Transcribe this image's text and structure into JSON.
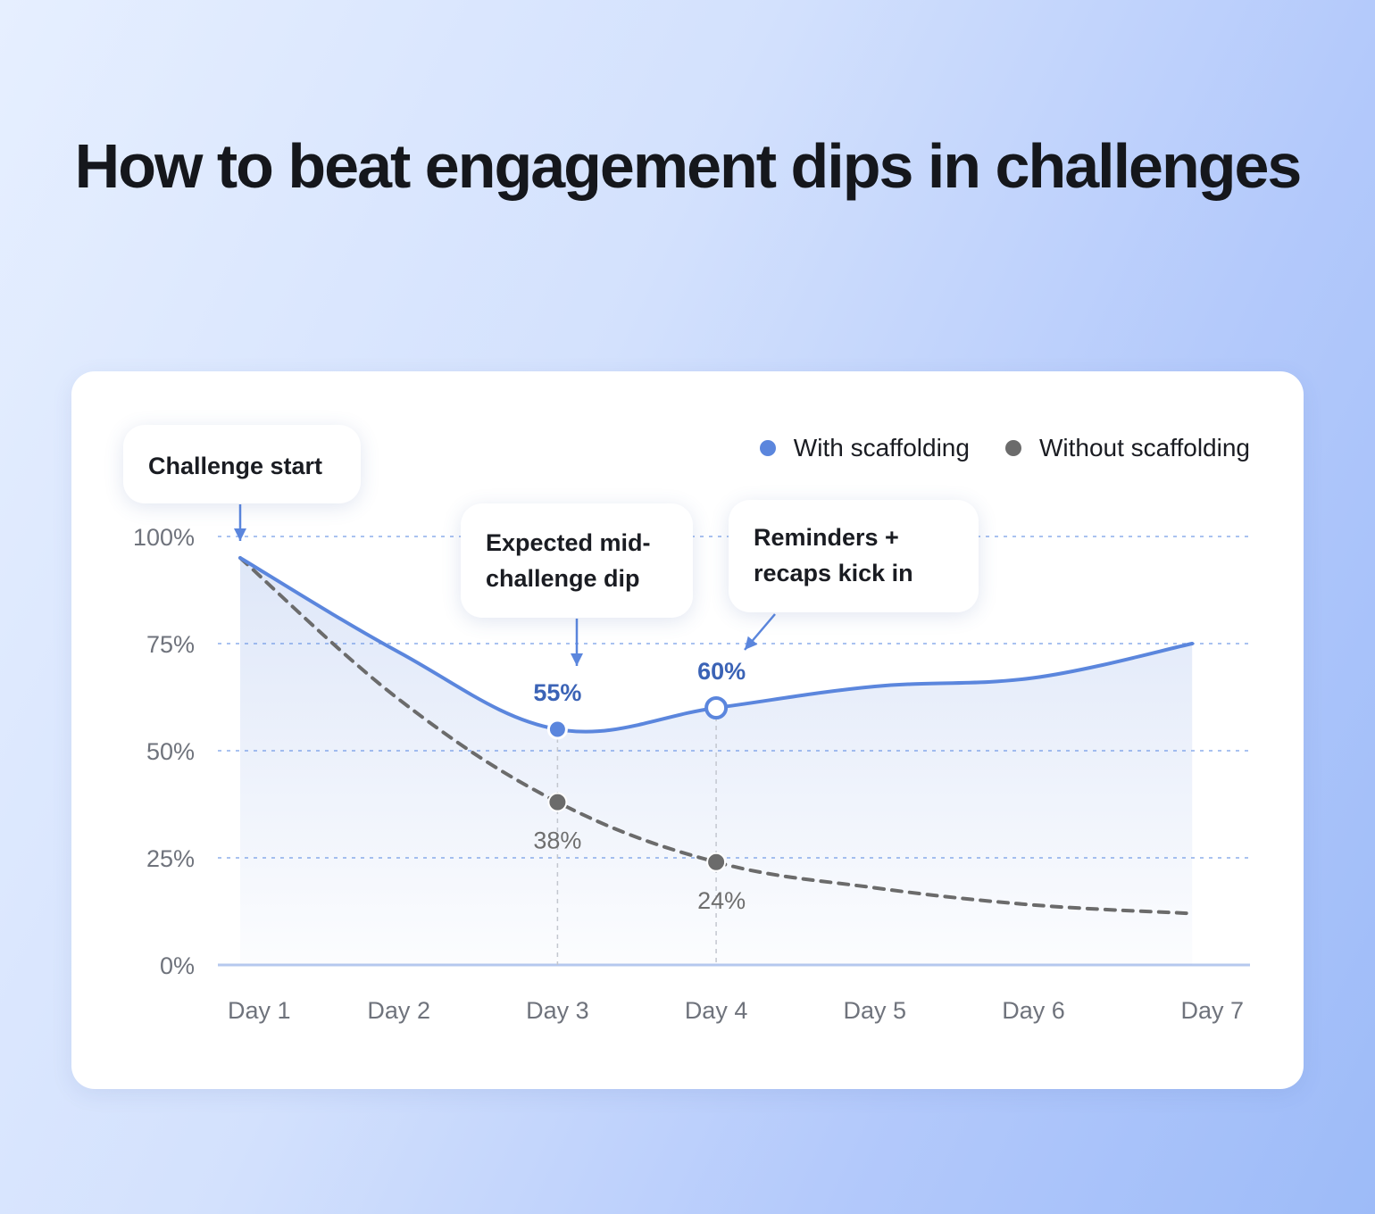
{
  "title": "How to beat engagement dips in challenges",
  "legend": {
    "with_label": "With scaffolding",
    "without_label": "Without scaffolding"
  },
  "callouts": {
    "start": "Challenge start",
    "dip_line1": "Expected mid-",
    "dip_line2": "challenge dip",
    "reminders_line1": "Reminders +",
    "reminders_line2": "recaps kick in"
  },
  "colors": {
    "with": "#5b86dd",
    "without": "#6b6b6b",
    "label_with": "#3b63b6",
    "label_without": "#6e6e6e"
  },
  "chart_data": {
    "type": "line",
    "categories": [
      "Day 1",
      "Day 2",
      "Day 3",
      "Day 4",
      "Day 5",
      "Day 6",
      "Day 7"
    ],
    "yticks": [
      "0%",
      "25%",
      "50%",
      "75%",
      "100%"
    ],
    "ylim": [
      0,
      100
    ],
    "grid": true,
    "legend_position": "top-right",
    "series": [
      {
        "name": "With scaffolding",
        "values": [
          95,
          73,
          55,
          60,
          65,
          67,
          75
        ]
      },
      {
        "name": "Without scaffolding",
        "values": [
          95,
          62,
          38,
          24,
          18,
          14,
          12
        ]
      }
    ],
    "point_labels": [
      {
        "series": 0,
        "index": 2,
        "text": "55%"
      },
      {
        "series": 0,
        "index": 3,
        "text": "60%"
      },
      {
        "series": 1,
        "index": 2,
        "text": "38%"
      },
      {
        "series": 1,
        "index": 3,
        "text": "24%"
      }
    ]
  }
}
